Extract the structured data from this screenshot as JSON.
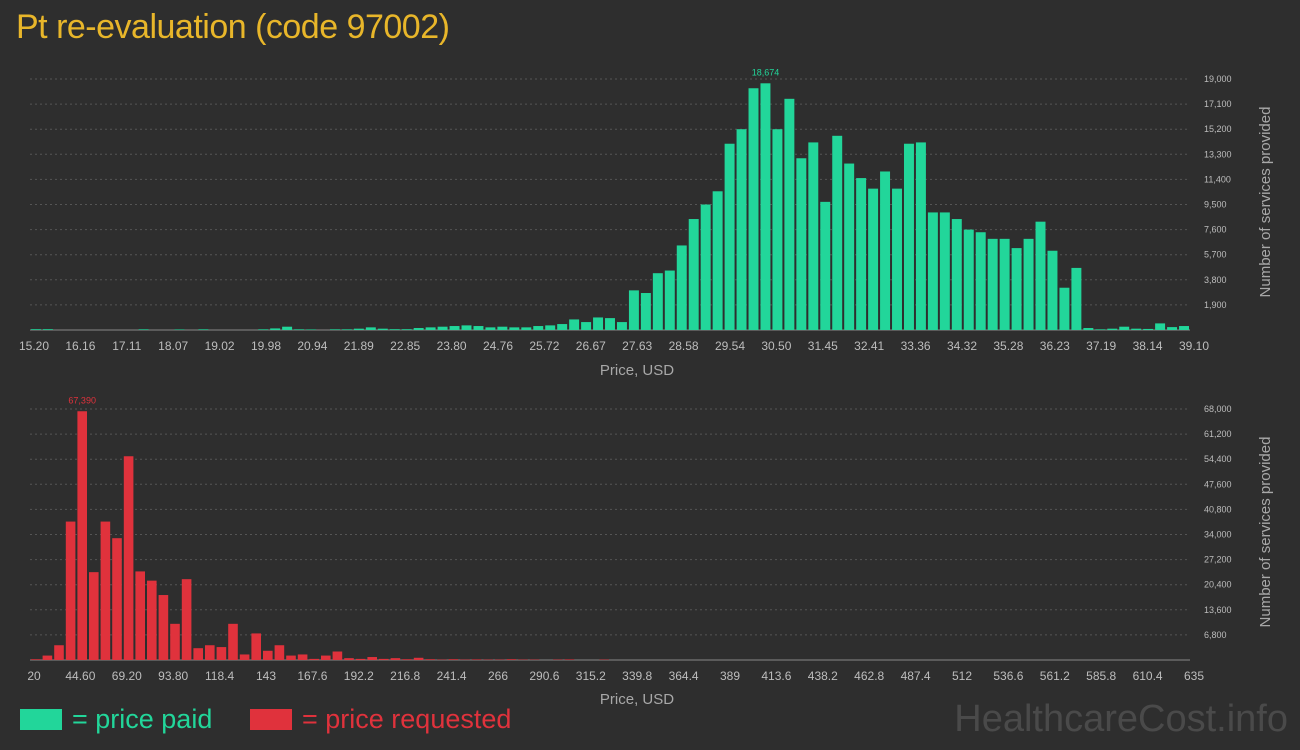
{
  "title": "Pt re-evaluation (code 97002)",
  "colors": {
    "paid": "#22d69a",
    "requested": "#e0323c",
    "title": "#e8b62a",
    "background": "#2e2e2e",
    "grid": "#555555",
    "text": "#bdbdbd"
  },
  "legend": {
    "paid_label": "= price paid",
    "requested_label": "= price requested"
  },
  "watermark": "HealthcareCost.info",
  "chart_data": [
    {
      "type": "bar",
      "series_key": "paid",
      "xlabel": "Price, USD",
      "ylabel": "Number of services provided",
      "x_range": [
        15.2,
        39.1
      ],
      "ylim": [
        0,
        19000
      ],
      "grid": true,
      "x_ticks": [
        "15.20",
        "16.16",
        "17.11",
        "18.07",
        "19.02",
        "19.98",
        "20.94",
        "21.89",
        "22.85",
        "23.80",
        "24.76",
        "25.72",
        "26.67",
        "27.63",
        "28.58",
        "29.54",
        "30.50",
        "31.45",
        "32.41",
        "33.36",
        "34.32",
        "35.28",
        "36.23",
        "37.19",
        "38.14",
        "39.10"
      ],
      "y_ticks": [
        "1,900",
        "3,800",
        "5,700",
        "7,600",
        "9,500",
        "11,400",
        "13,300",
        "15,200",
        "17,100",
        "19,000"
      ],
      "peak": {
        "label": "18,674",
        "value": 18674
      },
      "values": [
        60,
        60,
        0,
        0,
        0,
        0,
        0,
        0,
        0,
        50,
        0,
        0,
        40,
        0,
        50,
        0,
        0,
        0,
        0,
        50,
        120,
        250,
        50,
        40,
        0,
        50,
        50,
        100,
        200,
        100,
        60,
        60,
        150,
        200,
        250,
        300,
        350,
        300,
        200,
        250,
        200,
        200,
        300,
        350,
        450,
        800,
        600,
        950,
        900,
        600,
        3000,
        2800,
        4300,
        4500,
        6400,
        8400,
        9500,
        10500,
        14100,
        15200,
        18300,
        18674,
        15200,
        17500,
        13000,
        14200,
        9700,
        14700,
        12600,
        11500,
        10700,
        12000,
        10700,
        14100,
        14200,
        8900,
        8900,
        8400,
        7600,
        7400,
        6900,
        6900,
        6200,
        6900,
        8200,
        6000,
        3200,
        4700,
        150,
        50,
        100,
        250,
        100,
        80,
        500,
        220,
        300
      ]
    },
    {
      "type": "bar",
      "series_key": "requested",
      "xlabel": "Price, USD",
      "ylabel": "Number of services provided",
      "x_range": [
        20,
        635
      ],
      "ylim": [
        0,
        68000
      ],
      "grid": true,
      "x_ticks": [
        "20",
        "44.60",
        "69.20",
        "93.80",
        "118.4",
        "143",
        "167.6",
        "192.2",
        "216.8",
        "241.4",
        "266",
        "290.6",
        "315.2",
        "339.8",
        "364.4",
        "389",
        "413.6",
        "438.2",
        "462.8",
        "487.4",
        "512",
        "536.6",
        "561.2",
        "585.8",
        "610.4",
        "635"
      ],
      "y_ticks": [
        "6,800",
        "13,600",
        "20,400",
        "27,200",
        "34,000",
        "40,800",
        "47,600",
        "54,400",
        "61,200",
        "68,000"
      ],
      "peak": {
        "label": "67,390",
        "value": 67390
      },
      "values": [
        200,
        1200,
        4000,
        37500,
        67390,
        23800,
        37500,
        33000,
        55200,
        24000,
        21500,
        17600,
        9800,
        21900,
        3200,
        4000,
        3500,
        9800,
        1500,
        7200,
        2500,
        4000,
        1200,
        1500,
        300,
        1200,
        2300,
        500,
        300,
        800,
        300,
        500,
        200,
        600,
        200,
        100,
        200,
        100,
        150,
        100,
        100,
        200,
        100,
        100,
        0,
        100,
        150,
        0,
        0,
        100,
        0,
        0,
        0,
        0,
        0,
        0,
        0,
        0,
        0,
        0,
        0,
        0,
        0,
        0,
        0,
        0,
        0,
        0,
        0,
        0,
        0,
        0,
        0,
        0,
        0,
        0,
        0,
        0,
        0,
        0,
        0,
        0,
        0,
        0,
        0,
        0,
        0,
        0,
        0,
        0,
        0,
        0,
        0,
        0,
        0,
        0,
        0,
        0,
        0,
        0
      ]
    }
  ]
}
